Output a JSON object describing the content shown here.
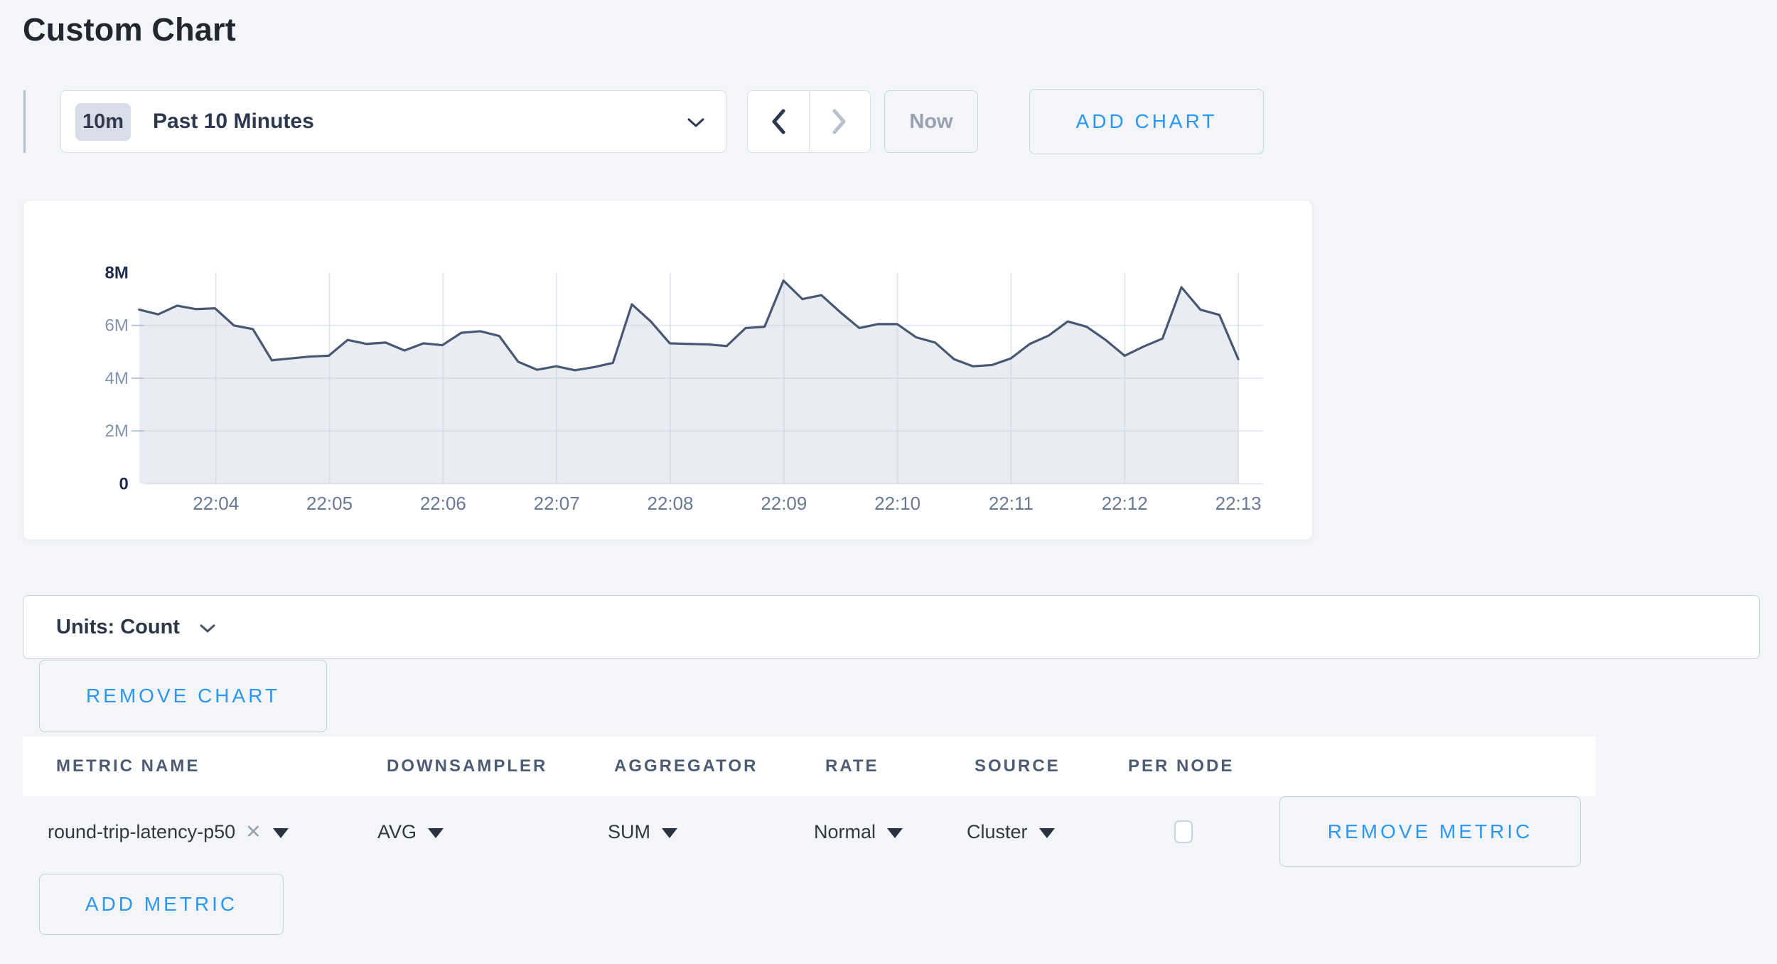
{
  "page": {
    "title": "Custom Chart"
  },
  "toolbar": {
    "time_badge": "10m",
    "time_label": "Past 10 Minutes",
    "now_label": "Now",
    "add_chart_label": "ADD CHART"
  },
  "chart_data": {
    "type": "area",
    "title": "",
    "series_name": "round-trip-latency-p50",
    "x_tick_labels": [
      "22:04",
      "22:05",
      "22:06",
      "22:07",
      "22:08",
      "22:09",
      "22:10",
      "22:11",
      "22:12",
      "22:13"
    ],
    "y_tick_labels": [
      "0",
      "2M",
      "4M",
      "6M",
      "8M"
    ],
    "ylim": [
      0,
      8000000
    ],
    "y_unit": "count",
    "first_sample_time": "22:03:20",
    "sample_interval_seconds": 10,
    "values_millions": [
      6.6,
      6.42,
      6.75,
      6.62,
      6.65,
      6.0,
      5.86,
      4.68,
      4.75,
      4.82,
      4.85,
      5.45,
      5.3,
      5.35,
      5.05,
      5.32,
      5.25,
      5.72,
      5.78,
      5.6,
      4.62,
      4.32,
      4.45,
      4.3,
      4.42,
      4.58,
      6.8,
      6.15,
      5.32,
      5.3,
      5.28,
      5.22,
      5.9,
      5.95,
      7.7,
      7.0,
      7.15,
      6.5,
      5.9,
      6.05,
      6.05,
      5.55,
      5.35,
      4.72,
      4.45,
      4.5,
      4.75,
      5.3,
      5.62,
      6.15,
      5.95,
      5.45,
      4.85,
      5.2,
      5.5,
      7.45,
      6.6,
      6.4,
      4.72
    ],
    "grid": true,
    "legend": false,
    "line_color": "#485772",
    "fill_color": "#e9ecf2",
    "grid_color": "#c9d4e6"
  },
  "units_bar": {
    "label": "Units: Count"
  },
  "chart_actions": {
    "remove_chart_label": "REMOVE CHART",
    "add_metric_label": "ADD METRIC"
  },
  "metrics_table": {
    "headers": [
      "METRIC NAME",
      "DOWNSAMPLER",
      "AGGREGATOR",
      "RATE",
      "SOURCE",
      "PER NODE"
    ],
    "row": {
      "metric_name": "round-trip-latency-p50",
      "clear_icon": "✕",
      "downsampler": "AVG",
      "aggregator": "SUM",
      "rate": "Normal",
      "source": "Cluster",
      "per_node_checked": false,
      "remove_metric_label": "REMOVE METRIC"
    }
  },
  "colors": {
    "accent_blue": "#2b97f3",
    "page_background": "#f3f5f9"
  }
}
